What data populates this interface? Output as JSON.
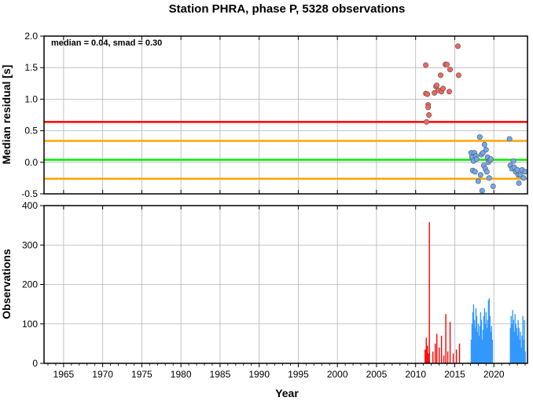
{
  "chart_data": [
    {
      "type": "scatter",
      "title": "Station PHRA, phase P, 5328 observations",
      "ylabel": "Median residual [s]",
      "annotation": "median = 0.04, smad = 0.30",
      "xlim": [
        1962.5,
        2024.3
      ],
      "ylim": [
        -0.5,
        2.0
      ],
      "yticks": [
        "2.0",
        "1.5",
        "1.0",
        "0.5",
        "0.0",
        "-0.5"
      ],
      "ytick_values": [
        2.0,
        1.5,
        1.0,
        0.5,
        0.0,
        -0.5
      ],
      "grid": true,
      "reference_lines": [
        {
          "y": 0.64,
          "color": "#ff0000"
        },
        {
          "y": 0.34,
          "color": "#ffa500"
        },
        {
          "y": 0.04,
          "color": "#00ee00"
        },
        {
          "y": -0.26,
          "color": "#ffa500"
        }
      ],
      "series": [
        {
          "color": "#f2665a",
          "points": [
            [
              2011.3,
              1.54
            ],
            [
              2011.3,
              1.09
            ],
            [
              2011.5,
              1.08
            ],
            [
              2011.6,
              0.91
            ],
            [
              2011.6,
              0.87
            ],
            [
              2011.7,
              0.75
            ],
            [
              2011.4,
              0.64
            ],
            [
              2012.4,
              1.1
            ],
            [
              2012.6,
              1.2
            ],
            [
              2012.7,
              1.22
            ],
            [
              2012.9,
              1.14
            ],
            [
              2013.2,
              1.38
            ],
            [
              2013.3,
              1.12
            ],
            [
              2013.5,
              1.17
            ],
            [
              2013.8,
              1.55
            ],
            [
              2014.0,
              1.55
            ],
            [
              2014.3,
              1.12
            ],
            [
              2014.4,
              1.47
            ],
            [
              2015.4,
              1.84
            ],
            [
              2015.5,
              1.38
            ]
          ]
        },
        {
          "color": "#6fa8f0",
          "points": [
            [
              2017.1,
              0.15
            ],
            [
              2017.2,
              0.08
            ],
            [
              2017.3,
              -0.13
            ],
            [
              2017.4,
              0.02
            ],
            [
              2017.5,
              0.15
            ],
            [
              2017.6,
              -0.15
            ],
            [
              2017.7,
              0.1
            ],
            [
              2017.8,
              0.05
            ],
            [
              2018.0,
              -0.3
            ],
            [
              2018.2,
              0.4
            ],
            [
              2018.3,
              -0.2
            ],
            [
              2018.4,
              0.12
            ],
            [
              2018.5,
              -0.45
            ],
            [
              2018.6,
              0.15
            ],
            [
              2018.7,
              -0.05
            ],
            [
              2018.8,
              0.28
            ],
            [
              2018.9,
              -0.1
            ],
            [
              2019.0,
              0.2
            ],
            [
              2019.1,
              -0.15
            ],
            [
              2019.2,
              0.08
            ],
            [
              2019.3,
              0.0
            ],
            [
              2019.4,
              -0.25
            ],
            [
              2019.5,
              0.03
            ],
            [
              2019.6,
              0.05
            ],
            [
              2019.9,
              -0.38
            ],
            [
              2022.0,
              0.37
            ],
            [
              2022.1,
              -0.05
            ],
            [
              2022.3,
              -0.1
            ],
            [
              2022.5,
              0.02
            ],
            [
              2022.6,
              -0.08
            ],
            [
              2022.8,
              -0.15
            ],
            [
              2023.0,
              -0.12
            ],
            [
              2023.1,
              -0.2
            ],
            [
              2023.2,
              -0.33
            ],
            [
              2023.4,
              -0.2
            ],
            [
              2023.6,
              -0.12
            ],
            [
              2023.8,
              -0.25
            ],
            [
              2024.0,
              -0.15
            ]
          ]
        }
      ]
    },
    {
      "type": "bar",
      "ylabel": "Observations",
      "xlabel": "Year",
      "xlim": [
        1962.5,
        2024.3
      ],
      "ylim": [
        0,
        400
      ],
      "xticks": [
        "1965",
        "1970",
        "1975",
        "1980",
        "1985",
        "1990",
        "1995",
        "2000",
        "2005",
        "2010",
        "2015",
        "2020"
      ],
      "xtick_values": [
        1965,
        1970,
        1975,
        1980,
        1985,
        1990,
        1995,
        2000,
        2005,
        2010,
        2015,
        2020
      ],
      "yticks": [
        "400",
        "300",
        "200",
        "100",
        "0"
      ],
      "ytick_values": [
        400,
        300,
        200,
        100,
        0
      ],
      "grid": true,
      "series": [
        {
          "color": "#ff0000",
          "bars": [
            [
              2011.2,
              35
            ],
            [
              2011.35,
              65
            ],
            [
              2011.5,
              45
            ],
            [
              2011.6,
              25
            ],
            [
              2011.75,
              358
            ],
            [
              2012.2,
              30
            ],
            [
              2012.5,
              50
            ],
            [
              2012.7,
              75
            ],
            [
              2013.0,
              40
            ],
            [
              2013.3,
              70
            ],
            [
              2013.6,
              20
            ],
            [
              2013.85,
              125
            ],
            [
              2014.1,
              30
            ],
            [
              2014.4,
              105
            ],
            [
              2014.8,
              25
            ],
            [
              2015.2,
              35
            ],
            [
              2015.6,
              50
            ]
          ]
        },
        {
          "color": "#3399ff",
          "bars": [
            [
              2017.1,
              60
            ],
            [
              2017.2,
              100
            ],
            [
              2017.3,
              130
            ],
            [
              2017.4,
              150
            ],
            [
              2017.5,
              110
            ],
            [
              2017.6,
              90
            ],
            [
              2017.7,
              140
            ],
            [
              2017.8,
              120
            ],
            [
              2017.9,
              80
            ],
            [
              2018.0,
              100
            ],
            [
              2018.1,
              70
            ],
            [
              2018.2,
              95
            ],
            [
              2018.3,
              130
            ],
            [
              2018.4,
              110
            ],
            [
              2018.5,
              60
            ],
            [
              2018.6,
              85
            ],
            [
              2018.7,
              120
            ],
            [
              2018.8,
              140
            ],
            [
              2018.9,
              100
            ],
            [
              2019.0,
              130
            ],
            [
              2019.1,
              90
            ],
            [
              2019.2,
              110
            ],
            [
              2019.3,
              160
            ],
            [
              2019.4,
              165
            ],
            [
              2019.5,
              120
            ],
            [
              2019.6,
              80
            ],
            [
              2019.7,
              95
            ],
            [
              2019.8,
              60
            ],
            [
              2022.1,
              90
            ],
            [
              2022.2,
              120
            ],
            [
              2022.3,
              100
            ],
            [
              2022.4,
              135
            ],
            [
              2022.5,
              110
            ],
            [
              2022.6,
              80
            ],
            [
              2022.7,
              125
            ],
            [
              2022.8,
              100
            ],
            [
              2022.9,
              90
            ],
            [
              2023.0,
              70
            ],
            [
              2023.1,
              110
            ],
            [
              2023.2,
              90
            ],
            [
              2023.3,
              60
            ],
            [
              2023.4,
              80
            ],
            [
              2023.5,
              40
            ],
            [
              2023.6,
              70
            ],
            [
              2023.7,
              120
            ],
            [
              2023.8,
              60
            ],
            [
              2023.9,
              110
            ],
            [
              2024.0,
              30
            ]
          ]
        }
      ]
    }
  ]
}
